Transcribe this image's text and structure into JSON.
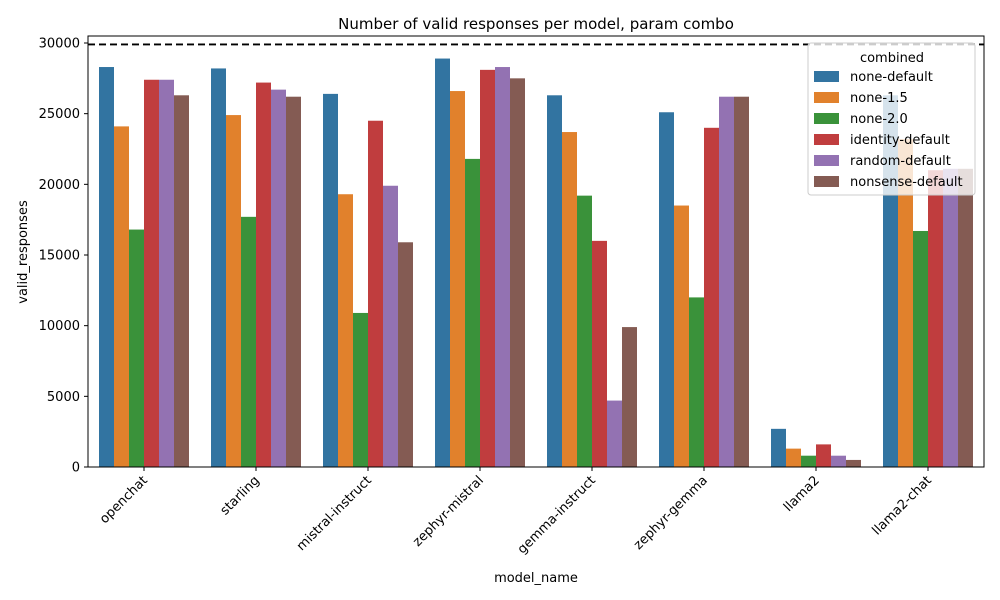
{
  "chart_data": {
    "type": "bar",
    "title": "Number of valid responses per model, param combo",
    "xlabel": "model_name",
    "ylabel": "valid_responses",
    "ylim": [
      0,
      30000
    ],
    "yticks": [
      0,
      5000,
      10000,
      15000,
      20000,
      25000,
      30000
    ],
    "reference_line": 29900,
    "grid": false,
    "legend_title": "combined",
    "legend_placement": "top-right",
    "categories": [
      "openchat",
      "starling",
      "mistral-instruct",
      "zephyr-mistral",
      "gemma-instruct",
      "zephyr-gemma",
      "llama2",
      "llama2-chat"
    ],
    "series": [
      {
        "name": "none-default",
        "color": "#3274a1",
        "values": [
          28300,
          28200,
          26400,
          28900,
          26300,
          25100,
          2700,
          26300
        ]
      },
      {
        "name": "none-1.5",
        "color": "#e1812c",
        "values": [
          24100,
          24900,
          19300,
          26600,
          23700,
          18500,
          1300,
          23200
        ]
      },
      {
        "name": "none-2.0",
        "color": "#3a923a",
        "values": [
          16800,
          17700,
          10900,
          21800,
          19200,
          12000,
          800,
          16700
        ]
      },
      {
        "name": "identity-default",
        "color": "#c03d3e",
        "values": [
          27400,
          27200,
          24500,
          28100,
          16000,
          24000,
          1600,
          21000
        ]
      },
      {
        "name": "random-default",
        "color": "#9372b2",
        "values": [
          27400,
          26700,
          19900,
          28300,
          4700,
          26200,
          800,
          21100
        ]
      },
      {
        "name": "nonsense-default",
        "color": "#845b53",
        "values": [
          26300,
          26200,
          15900,
          27500,
          9900,
          26200,
          500,
          21100
        ]
      }
    ]
  }
}
